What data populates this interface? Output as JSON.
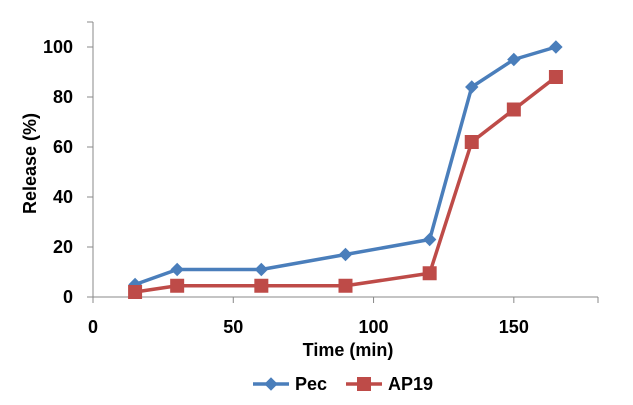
{
  "chart_data": {
    "type": "line",
    "x": [
      15,
      30,
      60,
      90,
      120,
      135,
      150,
      165
    ],
    "series": [
      {
        "name": "Pec",
        "color": "#4a7ebb",
        "marker": "diamond",
        "values": [
          5,
          11,
          11,
          17,
          23,
          84,
          95,
          100
        ]
      },
      {
        "name": "AP19",
        "color": "#be4b48",
        "marker": "square",
        "values": [
          2,
          4.5,
          4.5,
          4.5,
          9.5,
          62,
          75,
          88
        ]
      }
    ],
    "xlabel": "Time (min)",
    "ylabel": "Release (%)",
    "xlim": [
      0,
      180
    ],
    "ylim": [
      0,
      110
    ],
    "xticks": [
      0,
      50,
      100,
      150
    ],
    "yticks": [
      0,
      20,
      40,
      60,
      80,
      100
    ],
    "grid": false,
    "legend_position": "bottom"
  }
}
